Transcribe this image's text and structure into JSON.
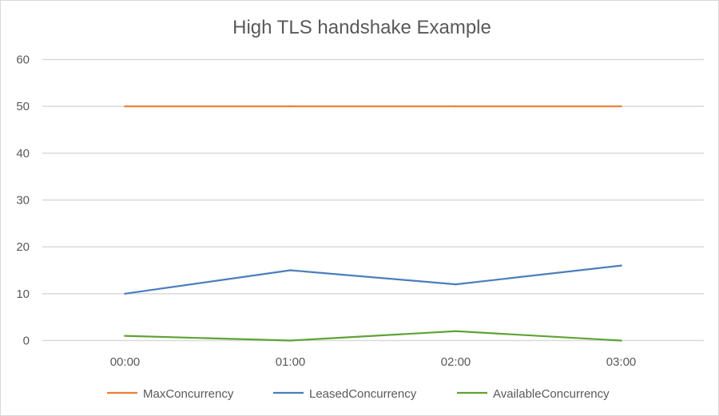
{
  "chart_data": {
    "type": "line",
    "title": "High TLS handshake Example",
    "categories": [
      "00:00",
      "01:00",
      "02:00",
      "03:00"
    ],
    "series": [
      {
        "name": "MaxConcurrency",
        "values": [
          50,
          50,
          50,
          50
        ],
        "color": "#ed7d31"
      },
      {
        "name": "LeasedConcurrency",
        "values": [
          10,
          15,
          12,
          16
        ],
        "color": "#4a7ebb"
      },
      {
        "name": "AvailableConcurrency",
        "values": [
          1,
          0,
          2,
          0
        ],
        "color": "#5ea335"
      }
    ],
    "ylim": [
      0,
      60
    ],
    "yticks": [
      0,
      10,
      20,
      30,
      40,
      50,
      60
    ],
    "grid": true,
    "legend": "bottom"
  }
}
